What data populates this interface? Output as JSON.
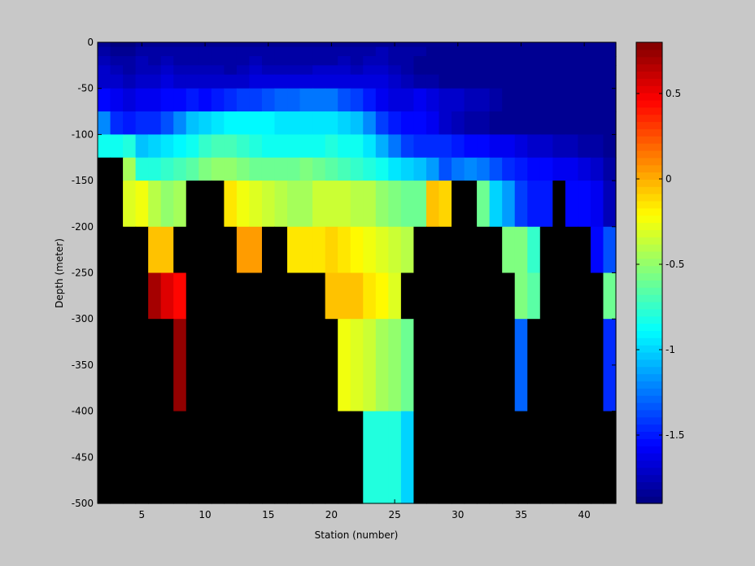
{
  "chart_data": {
    "type": "heatmap",
    "xlabel": "Station (number)",
    "ylabel": "Depth (meter)",
    "xlim": [
      1.5,
      42.5
    ],
    "ylim": [
      -500,
      0
    ],
    "x_ticks": [
      5,
      10,
      15,
      20,
      25,
      30,
      35,
      40
    ],
    "x_tick_labels": [
      "5",
      "10",
      "15",
      "20",
      "25",
      "30",
      "35",
      "40"
    ],
    "y_ticks": [
      0,
      -50,
      -100,
      -150,
      -200,
      -250,
      -300,
      -350,
      -400,
      -450,
      -500
    ],
    "y_tick_labels": [
      "0",
      "-50",
      "-100",
      "-150",
      "-200",
      "-250",
      "-300",
      "-350",
      "-400",
      "-450",
      "-500"
    ],
    "colorbar": {
      "colormap": "jet",
      "clim": [
        -1.9,
        0.8
      ],
      "ticks": [
        0.5,
        0,
        -0.5,
        -1,
        -1.5
      ],
      "tick_labels": [
        "0.5",
        "0",
        "-0.5",
        "-1",
        "-1.5"
      ]
    },
    "missing_color": "#000000",
    "stations": [
      2,
      3,
      4,
      5,
      6,
      7,
      8,
      9,
      10,
      11,
      12,
      13,
      14,
      15,
      16,
      17,
      18,
      19,
      20,
      21,
      22,
      23,
      24,
      25,
      26,
      27,
      28,
      29,
      30,
      31,
      32,
      33,
      34,
      35,
      36,
      37,
      38,
      39,
      40,
      41,
      42
    ],
    "depth_bins": [
      {
        "top": 0,
        "bottom": -5
      },
      {
        "top": -5,
        "bottom": -15
      },
      {
        "top": -15,
        "bottom": -25
      },
      {
        "top": -25,
        "bottom": -35
      },
      {
        "top": -35,
        "bottom": -50
      },
      {
        "top": -50,
        "bottom": -75
      },
      {
        "top": -75,
        "bottom": -100
      },
      {
        "top": -100,
        "bottom": -125
      },
      {
        "top": -125,
        "bottom": -150
      },
      {
        "top": -150,
        "bottom": -200
      },
      {
        "top": -200,
        "bottom": -250
      },
      {
        "top": -250,
        "bottom": -300
      },
      {
        "top": -300,
        "bottom": -400
      },
      {
        "top": -400,
        "bottom": -500
      }
    ],
    "rows": [
      [
        -1.85,
        -1.9,
        -1.9,
        -1.85,
        -1.85,
        -1.85,
        -1.85,
        -1.85,
        -1.85,
        -1.85,
        -1.85,
        -1.85,
        -1.85,
        -1.85,
        -1.85,
        -1.85,
        -1.85,
        -1.85,
        -1.85,
        -1.85,
        -1.85,
        -1.85,
        -1.85,
        -1.85,
        -1.85,
        -1.85,
        -1.85,
        -1.85,
        -1.85,
        -1.85,
        -1.85,
        -1.85,
        -1.85,
        -1.85,
        -1.85,
        -1.85,
        -1.85,
        -1.85,
        -1.85,
        -1.85,
        -1.85
      ],
      [
        -1.8,
        -1.85,
        -1.85,
        -1.8,
        -1.8,
        -1.8,
        -1.8,
        -1.8,
        -1.8,
        -1.8,
        -1.8,
        -1.8,
        -1.8,
        -1.8,
        -1.8,
        -1.8,
        -1.8,
        -1.8,
        -1.8,
        -1.8,
        -1.8,
        -1.8,
        -1.75,
        -1.8,
        -1.8,
        -1.8,
        -1.85,
        -1.85,
        -1.85,
        -1.85,
        -1.85,
        -1.85,
        -1.85,
        -1.85,
        -1.85,
        -1.85,
        -1.85,
        -1.85,
        -1.85,
        -1.85,
        -1.85
      ],
      [
        -1.75,
        -1.8,
        -1.8,
        -1.75,
        -1.8,
        -1.75,
        -1.8,
        -1.8,
        -1.8,
        -1.8,
        -1.8,
        -1.8,
        -1.75,
        -1.8,
        -1.8,
        -1.8,
        -1.8,
        -1.8,
        -1.8,
        -1.75,
        -1.8,
        -1.75,
        -1.75,
        -1.8,
        -1.8,
        -1.85,
        -1.85,
        -1.85,
        -1.85,
        -1.85,
        -1.85,
        -1.85,
        -1.85,
        -1.85,
        -1.85,
        -1.85,
        -1.85,
        -1.85,
        -1.85,
        -1.85,
        -1.85
      ],
      [
        -1.7,
        -1.75,
        -1.8,
        -1.75,
        -1.75,
        -1.7,
        -1.75,
        -1.75,
        -1.75,
        -1.75,
        -1.8,
        -1.75,
        -1.7,
        -1.75,
        -1.75,
        -1.75,
        -1.75,
        -1.7,
        -1.7,
        -1.7,
        -1.75,
        -1.7,
        -1.7,
        -1.75,
        -1.8,
        -1.85,
        -1.85,
        -1.85,
        -1.85,
        -1.85,
        -1.85,
        -1.85,
        -1.85,
        -1.85,
        -1.85,
        -1.85,
        -1.85,
        -1.85,
        -1.85,
        -1.85,
        -1.85
      ],
      [
        -1.7,
        -1.7,
        -1.75,
        -1.7,
        -1.7,
        -1.65,
        -1.7,
        -1.7,
        -1.7,
        -1.7,
        -1.7,
        -1.7,
        -1.65,
        -1.65,
        -1.65,
        -1.65,
        -1.65,
        -1.65,
        -1.65,
        -1.65,
        -1.65,
        -1.65,
        -1.65,
        -1.7,
        -1.75,
        -1.8,
        -1.8,
        -1.85,
        -1.85,
        -1.85,
        -1.85,
        -1.85,
        -1.85,
        -1.85,
        -1.85,
        -1.85,
        -1.85,
        -1.85,
        -1.85,
        -1.85,
        -1.85
      ],
      [
        -1.55,
        -1.6,
        -1.65,
        -1.6,
        -1.6,
        -1.55,
        -1.55,
        -1.5,
        -1.55,
        -1.5,
        -1.45,
        -1.4,
        -1.4,
        -1.35,
        -1.3,
        -1.3,
        -1.25,
        -1.25,
        -1.25,
        -1.35,
        -1.4,
        -1.5,
        -1.6,
        -1.65,
        -1.65,
        -1.6,
        -1.65,
        -1.7,
        -1.7,
        -1.75,
        -1.75,
        -1.8,
        -1.85,
        -1.85,
        -1.85,
        -1.85,
        -1.85,
        -1.85,
        -1.85,
        -1.85,
        -1.85
      ],
      [
        -1.2,
        -1.45,
        -1.5,
        -1.45,
        -1.45,
        -1.35,
        -1.2,
        -1.05,
        -1.0,
        -0.95,
        -0.9,
        -0.9,
        -0.9,
        -0.9,
        -0.95,
        -0.95,
        -0.95,
        -0.95,
        -0.95,
        -1.0,
        -1.05,
        -1.2,
        -1.4,
        -1.5,
        -1.55,
        -1.55,
        -1.6,
        -1.7,
        -1.75,
        -1.8,
        -1.8,
        -1.85,
        -1.85,
        -1.85,
        -1.85,
        -1.85,
        -1.85,
        -1.85,
        -1.85,
        -1.85,
        -1.85
      ],
      [
        -0.85,
        -0.85,
        -0.8,
        -1.05,
        -1.0,
        -0.95,
        -0.9,
        -0.85,
        -0.75,
        -0.7,
        -0.7,
        -0.75,
        -0.8,
        -0.85,
        -0.85,
        -0.85,
        -0.85,
        -0.85,
        -0.8,
        -0.85,
        -0.85,
        -0.95,
        -1.1,
        -1.25,
        -1.4,
        -1.45,
        -1.45,
        -1.45,
        -1.5,
        -1.55,
        -1.55,
        -1.6,
        -1.6,
        -1.65,
        -1.7,
        -1.7,
        -1.75,
        -1.75,
        -1.8,
        -1.8,
        -1.85
      ],
      [
        null,
        null,
        -0.45,
        -0.8,
        -0.8,
        -0.75,
        -0.7,
        -0.65,
        -0.55,
        -0.5,
        -0.5,
        -0.55,
        -0.6,
        -0.6,
        -0.6,
        -0.6,
        -0.55,
        -0.6,
        -0.65,
        -0.7,
        -0.75,
        -0.8,
        -0.85,
        -0.95,
        -1.0,
        -1.05,
        -1.15,
        -1.35,
        -1.25,
        -1.2,
        -1.25,
        -1.35,
        -1.45,
        -1.5,
        -1.55,
        -1.55,
        -1.6,
        -1.6,
        -1.65,
        -1.7,
        -1.8
      ],
      [
        null,
        null,
        -0.3,
        -0.25,
        -0.4,
        -0.5,
        -0.45,
        null,
        null,
        null,
        -0.15,
        -0.25,
        -0.3,
        -0.35,
        -0.4,
        -0.45,
        -0.45,
        -0.35,
        -0.35,
        -0.35,
        -0.4,
        -0.4,
        -0.5,
        -0.55,
        -0.6,
        -0.6,
        -0.05,
        -0.1,
        null,
        null,
        -0.6,
        -1.0,
        -1.15,
        -1.4,
        -1.5,
        -1.5,
        null,
        -1.55,
        -1.55,
        -1.6,
        -1.75
      ],
      [
        null,
        null,
        null,
        null,
        -0.05,
        -0.05,
        null,
        null,
        null,
        null,
        null,
        0.05,
        0.05,
        null,
        null,
        -0.15,
        -0.15,
        -0.15,
        -0.1,
        -0.15,
        -0.2,
        -0.25,
        -0.3,
        -0.35,
        -0.4,
        null,
        null,
        null,
        null,
        null,
        null,
        null,
        -0.55,
        -0.55,
        -0.75,
        null,
        null,
        null,
        null,
        -1.55,
        -1.35
      ],
      [
        null,
        null,
        null,
        null,
        0.7,
        0.55,
        0.45,
        null,
        null,
        null,
        null,
        null,
        null,
        null,
        null,
        null,
        null,
        null,
        -0.05,
        -0.05,
        -0.05,
        -0.15,
        -0.2,
        -0.3,
        null,
        null,
        null,
        null,
        null,
        null,
        null,
        null,
        null,
        -0.55,
        -0.65,
        null,
        null,
        null,
        null,
        null,
        -0.6
      ],
      [
        null,
        null,
        null,
        null,
        null,
        null,
        0.75,
        null,
        null,
        null,
        null,
        null,
        null,
        null,
        null,
        null,
        null,
        null,
        null,
        -0.25,
        -0.3,
        -0.35,
        -0.45,
        -0.5,
        -0.6,
        null,
        null,
        null,
        null,
        null,
        null,
        null,
        null,
        -1.3,
        null,
        null,
        null,
        null,
        null,
        null,
        -1.45
      ],
      [
        null,
        null,
        null,
        null,
        null,
        null,
        null,
        null,
        null,
        null,
        null,
        null,
        null,
        null,
        null,
        null,
        null,
        null,
        null,
        null,
        null,
        -0.8,
        -0.8,
        -0.8,
        -1.0,
        null,
        null,
        null,
        null,
        null,
        null,
        null,
        null,
        null,
        null,
        null,
        null,
        null,
        null,
        null,
        null
      ]
    ]
  }
}
